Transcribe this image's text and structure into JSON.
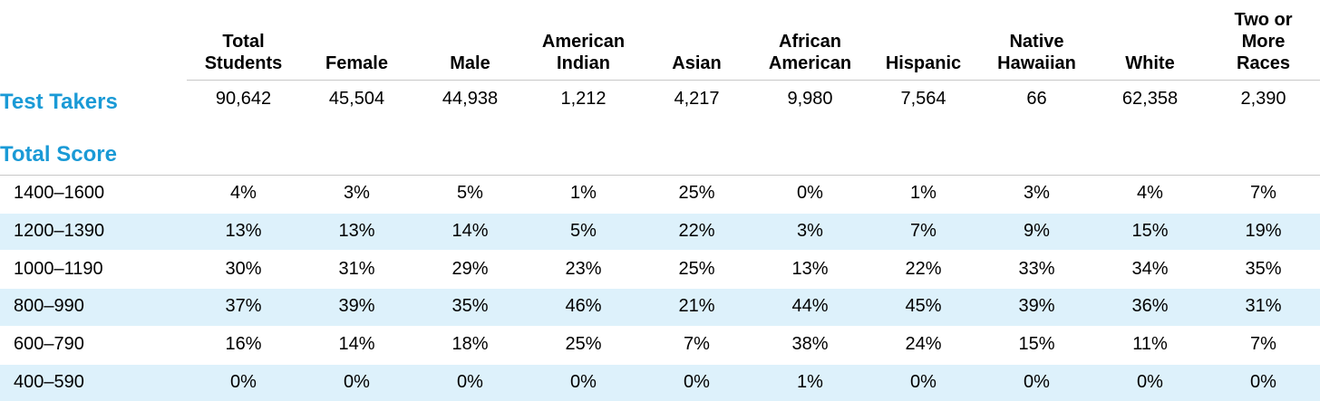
{
  "table": {
    "columns": [
      "Total Students",
      "Female",
      "Male",
      "American Indian",
      "Asian",
      "African American",
      "Hispanic",
      "Native Hawaiian",
      "White",
      "Two or More Races"
    ],
    "test_takers": {
      "label": "Test Takers",
      "values": [
        "90,642",
        "45,504",
        "44,938",
        "1,212",
        "4,217",
        "9,980",
        "7,564",
        "66",
        "62,358",
        "2,390"
      ]
    },
    "section": "Total Score",
    "rows": [
      {
        "label": "1400–1600",
        "values": [
          "4%",
          "3%",
          "5%",
          "1%",
          "25%",
          "0%",
          "1%",
          "3%",
          "4%",
          "7%"
        ]
      },
      {
        "label": "1200–1390",
        "values": [
          "13%",
          "13%",
          "14%",
          "5%",
          "22%",
          "3%",
          "7%",
          "9%",
          "15%",
          "19%"
        ]
      },
      {
        "label": "1000–1190",
        "values": [
          "30%",
          "31%",
          "29%",
          "23%",
          "25%",
          "13%",
          "22%",
          "33%",
          "34%",
          "35%"
        ]
      },
      {
        "label": "800–990",
        "values": [
          "37%",
          "39%",
          "35%",
          "46%",
          "21%",
          "44%",
          "45%",
          "39%",
          "36%",
          "31%"
        ]
      },
      {
        "label": "600–790",
        "values": [
          "16%",
          "14%",
          "18%",
          "25%",
          "7%",
          "38%",
          "24%",
          "15%",
          "11%",
          "7%"
        ]
      },
      {
        "label": "400–590",
        "values": [
          "0%",
          "0%",
          "0%",
          "0%",
          "0%",
          "1%",
          "0%",
          "0%",
          "0%",
          "0%"
        ]
      }
    ]
  }
}
